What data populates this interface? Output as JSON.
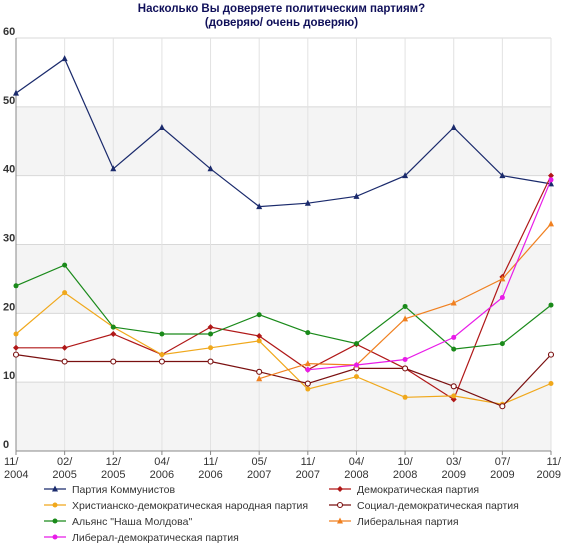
{
  "chart_data": {
    "type": "line",
    "title": "Насколько Вы доверяете политическим партиям?",
    "subtitle": "(доверяю/ очень доверяю)",
    "categories": [
      "11/ 2004",
      "02/ 2005",
      "12/ 2005",
      "04/ 2006",
      "11/ 2006",
      "05/ 2007",
      "11/ 2007",
      "04/ 2008",
      "10/ 2008",
      "03/ 2009",
      "07/ 2009",
      "11/ 2009"
    ],
    "x_tick_labels": [
      {
        "top": "11/",
        "bottom": "2004"
      },
      {
        "top": "02/",
        "bottom": "2005"
      },
      {
        "top": "12/",
        "bottom": "2005"
      },
      {
        "top": "04/",
        "bottom": "2006"
      },
      {
        "top": "11/",
        "bottom": "2006"
      },
      {
        "top": "05/",
        "bottom": "2007"
      },
      {
        "top": "11/",
        "bottom": "2007"
      },
      {
        "top": "04/",
        "bottom": "2008"
      },
      {
        "top": "10/",
        "bottom": "2008"
      },
      {
        "top": "03/",
        "bottom": "2009"
      },
      {
        "top": "07/",
        "bottom": "2009"
      },
      {
        "top": "11/",
        "bottom": "2009"
      }
    ],
    "ylim": [
      0,
      60
    ],
    "yticks": [
      0,
      10,
      20,
      30,
      40,
      50,
      60
    ],
    "grid": true,
    "legend_position": "bottom",
    "series": [
      {
        "name": "Партия Коммунистов",
        "color": "#1a2a6c",
        "marker": "triangle",
        "values": [
          52,
          57,
          41,
          47,
          41,
          35.5,
          36,
          37,
          40,
          47,
          40,
          38.8
        ]
      },
      {
        "name": "Демократическая партия",
        "color": "#b01818",
        "marker": "diamond",
        "values": [
          15,
          15,
          17,
          14,
          18,
          16.7,
          11.8,
          15.5,
          12,
          7.5,
          25.3,
          40
        ]
      },
      {
        "name": "Христианско-демократическая народная партия",
        "color": "#f0a81c",
        "marker": "circle-filled",
        "values": [
          17,
          23,
          18,
          14,
          15,
          16,
          9,
          10.8,
          7.8,
          8,
          6.8,
          9.8
        ]
      },
      {
        "name": "Социал-демократическая партия",
        "color": "#7a1010",
        "marker": "circle-open",
        "values": [
          14,
          13,
          13,
          13,
          13,
          11.5,
          9.8,
          12,
          12,
          9.4,
          6.5,
          14
        ]
      },
      {
        "name": "Альянс \"Наша Молдова\"",
        "color": "#1a8a1a",
        "marker": "circle-filled",
        "values": [
          24,
          27,
          18,
          17,
          17,
          19.8,
          17.2,
          15.6,
          21,
          14.8,
          15.6,
          21.2
        ]
      },
      {
        "name": "Либеральная партия",
        "color": "#f08020",
        "marker": "triangle",
        "values": [
          null,
          null,
          null,
          null,
          null,
          10.5,
          12.7,
          12.5,
          19.2,
          21.5,
          25,
          33
        ]
      },
      {
        "name": "Либерал-демократическая партия",
        "color": "#e81ce8",
        "marker": "circle-filled",
        "values": [
          null,
          null,
          null,
          null,
          null,
          null,
          11.8,
          12.5,
          13.3,
          16.5,
          22.3,
          39.4
        ]
      }
    ]
  }
}
